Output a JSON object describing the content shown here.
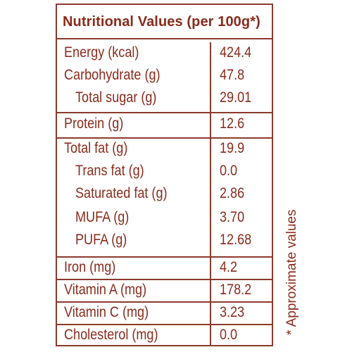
{
  "table": {
    "title": "Nutritional Values (per 100g*)",
    "rows": [
      {
        "label": "Energy (kcal)",
        "value": "424.4"
      },
      {
        "label": "Carbohydrate (g)",
        "value": "47.8"
      },
      {
        "label": "Total sugar (g)",
        "value": "29.01"
      },
      {
        "label": "Protein (g)",
        "value": "12.6"
      },
      {
        "label": "Total fat (g)",
        "value": "19.9"
      },
      {
        "label": "Trans fat (g)",
        "value": "0.0"
      },
      {
        "label": "Saturated fat (g)",
        "value": "2.86"
      },
      {
        "label": "MUFA (g)",
        "value": "3.70"
      },
      {
        "label": "PUFA (g)",
        "value": "12.68"
      },
      {
        "label": "Iron (mg)",
        "value": "4.2"
      },
      {
        "label": "Vitamin A (mg)",
        "value": "178.2"
      },
      {
        "label": "Vitamin C (mg)",
        "value": "3.23"
      },
      {
        "label": "Cholesterol (mg)",
        "value": "0.0"
      }
    ]
  },
  "footnote": "* Approximate values",
  "colors": {
    "text": "#8a2b1c",
    "border": "#8a3a2c",
    "background": "#ffffff"
  }
}
